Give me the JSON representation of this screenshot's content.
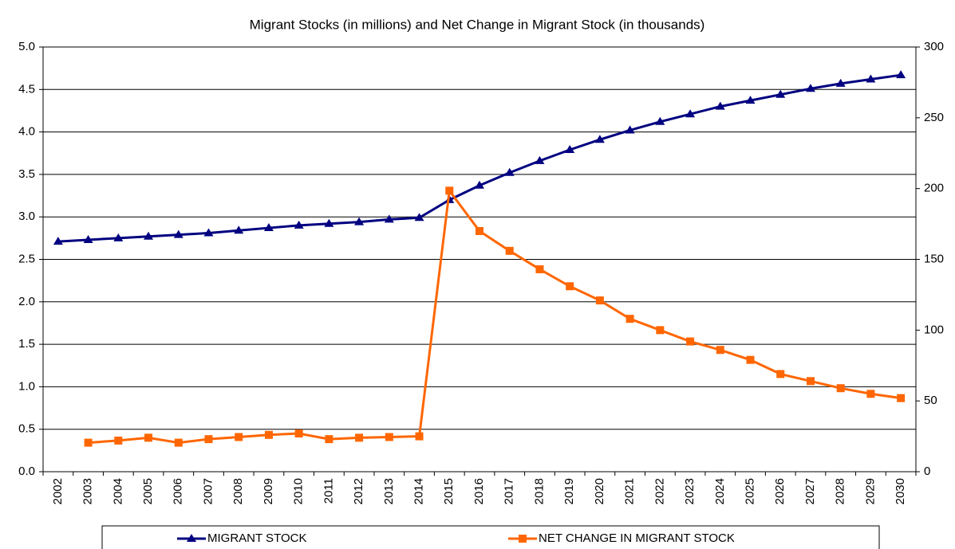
{
  "chart_data": {
    "type": "line",
    "title": "Migrant Stocks (in millions) and Net Change in Migrant Stock (in thousands)",
    "categories": [
      "2002",
      "2003",
      "2004",
      "2005",
      "2006",
      "2007",
      "2008",
      "2009",
      "2010",
      "2011",
      "2012",
      "2013",
      "2014",
      "2015",
      "2016",
      "2017",
      "2018",
      "2019",
      "2020",
      "2021",
      "2022",
      "2023",
      "2024",
      "2025",
      "2026",
      "2027",
      "2028",
      "2029",
      "2030"
    ],
    "series": [
      {
        "name": "MIGRANT STOCK",
        "color": "#000080",
        "marker": "triangle",
        "values": [
          2.71,
          2.73,
          2.75,
          2.77,
          2.79,
          2.81,
          2.84,
          2.87,
          2.9,
          2.92,
          2.94,
          2.97,
          2.99,
          3.2,
          3.37,
          3.52,
          3.66,
          3.79,
          3.91,
          4.02,
          4.12,
          4.21,
          4.3,
          4.37,
          4.44,
          4.51,
          4.57,
          4.62,
          4.67
        ]
      },
      {
        "name": "NET CHANGE IN MIGRANT STOCK",
        "color": "#ff6600",
        "marker": "square",
        "axis": "y2",
        "values": [
          null,
          20.5,
          22,
          24,
          20.5,
          23,
          24.5,
          26,
          27,
          23,
          24,
          24.5,
          25,
          198.5,
          170,
          156,
          143,
          131,
          121,
          108,
          100,
          92,
          86,
          79,
          69,
          64,
          59,
          55,
          52
        ]
      }
    ],
    "ylim": [
      0,
      5
    ],
    "yticks": [
      {
        "value": 0,
        "label": "0.0"
      },
      0.5,
      {
        "value": 1,
        "label": "1.0"
      },
      1.5,
      {
        "value": 2,
        "label": "2.0"
      },
      2.5,
      {
        "value": 3,
        "label": "3.0"
      },
      3.5,
      {
        "value": 4,
        "label": "4.0"
      },
      4.5,
      {
        "value": 5,
        "label": "5.0"
      }
    ],
    "y2lim": [
      0,
      300
    ],
    "y2ticks": [
      0,
      50,
      100,
      150,
      200,
      250,
      300
    ],
    "grid": true,
    "legend": "bottom"
  }
}
